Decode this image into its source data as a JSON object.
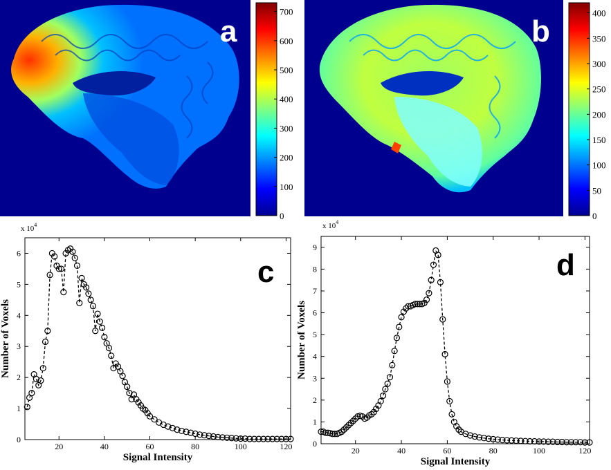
{
  "panels": {
    "a": {
      "label": "a"
    },
    "b": {
      "label": "b"
    },
    "c": {
      "label": "c"
    },
    "d": {
      "label": "d"
    }
  },
  "colorbars": [
    {
      "ticks": [
        0,
        100,
        200,
        300,
        400,
        500,
        600,
        700
      ],
      "max": 730
    },
    {
      "ticks": [
        0,
        50,
        100,
        150,
        200,
        250,
        300,
        350,
        400
      ],
      "max": 420
    }
  ],
  "colormap": [
    "#00008f",
    "#0000ff",
    "#0080ff",
    "#00ffff",
    "#80ff80",
    "#ffff00",
    "#ff8000",
    "#ff0000",
    "#800000"
  ],
  "chart_data": [
    {
      "type": "line",
      "panel": "c",
      "xlabel": "Signal Intensity",
      "ylabel": "Number of Voxels",
      "yexponent": "x 10^4",
      "xlim": [
        5,
        122
      ],
      "ylim": [
        0,
        6.5
      ],
      "xticks": [
        20,
        40,
        60,
        80,
        100,
        120
      ],
      "yticks": [
        0,
        1,
        2,
        3,
        4,
        5,
        6
      ],
      "x": [
        6,
        7,
        8,
        9,
        10,
        11,
        12,
        13,
        14,
        15,
        16,
        17,
        18,
        19,
        20,
        21,
        22,
        23,
        24,
        25,
        26,
        27,
        28,
        29,
        30,
        31,
        32,
        33,
        34,
        35,
        36,
        37,
        38,
        39,
        40,
        41,
        42,
        43,
        44,
        45,
        46,
        47,
        48,
        49,
        50,
        51,
        52,
        53,
        54,
        55,
        56,
        57,
        58,
        59,
        60,
        62,
        64,
        66,
        68,
        70,
        72,
        74,
        76,
        78,
        80,
        82,
        84,
        86,
        88,
        90,
        92,
        94,
        96,
        98,
        100,
        102,
        104,
        106,
        108,
        110,
        112,
        114,
        116,
        118,
        120,
        122
      ],
      "y": [
        1.05,
        1.35,
        1.5,
        2.1,
        1.95,
        1.75,
        1.9,
        2.3,
        3.15,
        3.5,
        5.3,
        6.0,
        5.9,
        5.6,
        5.5,
        5.5,
        4.75,
        6.0,
        6.1,
        6.15,
        6.05,
        5.85,
        5.6,
        4.4,
        5.2,
        5.0,
        4.9,
        4.7,
        4.5,
        4.3,
        3.5,
        4.05,
        3.8,
        3.6,
        3.3,
        3.1,
        2.95,
        2.7,
        2.3,
        2.45,
        2.35,
        2.2,
        2.05,
        1.85,
        1.7,
        1.5,
        1.3,
        1.45,
        1.3,
        1.2,
        1.1,
        1.0,
        0.95,
        0.85,
        0.75,
        0.65,
        0.55,
        0.48,
        0.42,
        0.37,
        0.32,
        0.28,
        0.25,
        0.22,
        0.19,
        0.16,
        0.14,
        0.12,
        0.1,
        0.08,
        0.07,
        0.06,
        0.05,
        0.04,
        0.03,
        0.03,
        0.02,
        0.02,
        0.02,
        0.02,
        0.02,
        0.02,
        0.02,
        0.02,
        0.02,
        0.02
      ],
      "line_style": "dashed",
      "marker": "circle"
    },
    {
      "type": "line",
      "panel": "d",
      "xlabel": "Signal Intensity",
      "ylabel": "Number of Voxels",
      "yexponent": "x 10^4",
      "xlim": [
        5,
        122
      ],
      "ylim": [
        0,
        9.5
      ],
      "xticks": [
        20,
        40,
        60,
        80,
        100,
        120
      ],
      "yticks": [
        0,
        1,
        2,
        3,
        4,
        5,
        6,
        7,
        8,
        9
      ],
      "x": [
        5,
        6,
        7,
        8,
        9,
        10,
        11,
        12,
        13,
        14,
        15,
        16,
        17,
        18,
        19,
        20,
        21,
        22,
        23,
        24,
        25,
        26,
        27,
        28,
        29,
        30,
        31,
        32,
        33,
        34,
        35,
        36,
        37,
        38,
        39,
        40,
        41,
        42,
        43,
        44,
        45,
        46,
        47,
        48,
        49,
        50,
        51,
        52,
        53,
        54,
        55,
        56,
        57,
        58,
        59,
        60,
        61,
        62,
        63,
        64,
        65,
        66,
        68,
        70,
        72,
        74,
        76,
        78,
        80,
        82,
        84,
        86,
        88,
        90,
        92,
        94,
        96,
        98,
        100,
        102,
        104,
        106,
        108,
        110,
        112,
        114,
        116,
        118,
        120,
        122
      ],
      "y": [
        0.55,
        0.55,
        0.5,
        0.5,
        0.48,
        0.45,
        0.45,
        0.45,
        0.5,
        0.55,
        0.65,
        0.75,
        0.85,
        0.95,
        1.05,
        1.15,
        1.25,
        1.28,
        1.25,
        1.15,
        1.2,
        1.3,
        1.35,
        1.45,
        1.6,
        1.75,
        1.95,
        2.2,
        2.5,
        2.75,
        3.05,
        3.6,
        4.25,
        4.85,
        5.35,
        5.8,
        6.05,
        6.2,
        6.3,
        6.3,
        6.35,
        6.4,
        6.4,
        6.4,
        6.4,
        6.45,
        6.6,
        6.9,
        7.5,
        8.2,
        8.85,
        8.65,
        7.4,
        5.7,
        4.1,
        2.85,
        1.95,
        1.35,
        1.0,
        0.8,
        0.65,
        0.55,
        0.45,
        0.38,
        0.33,
        0.29,
        0.26,
        0.23,
        0.21,
        0.19,
        0.17,
        0.16,
        0.15,
        0.14,
        0.13,
        0.12,
        0.11,
        0.11,
        0.1,
        0.1,
        0.09,
        0.09,
        0.08,
        0.08,
        0.07,
        0.07,
        0.07,
        0.07,
        0.06,
        0.06
      ],
      "line_style": "dashed",
      "marker": "circle"
    }
  ]
}
